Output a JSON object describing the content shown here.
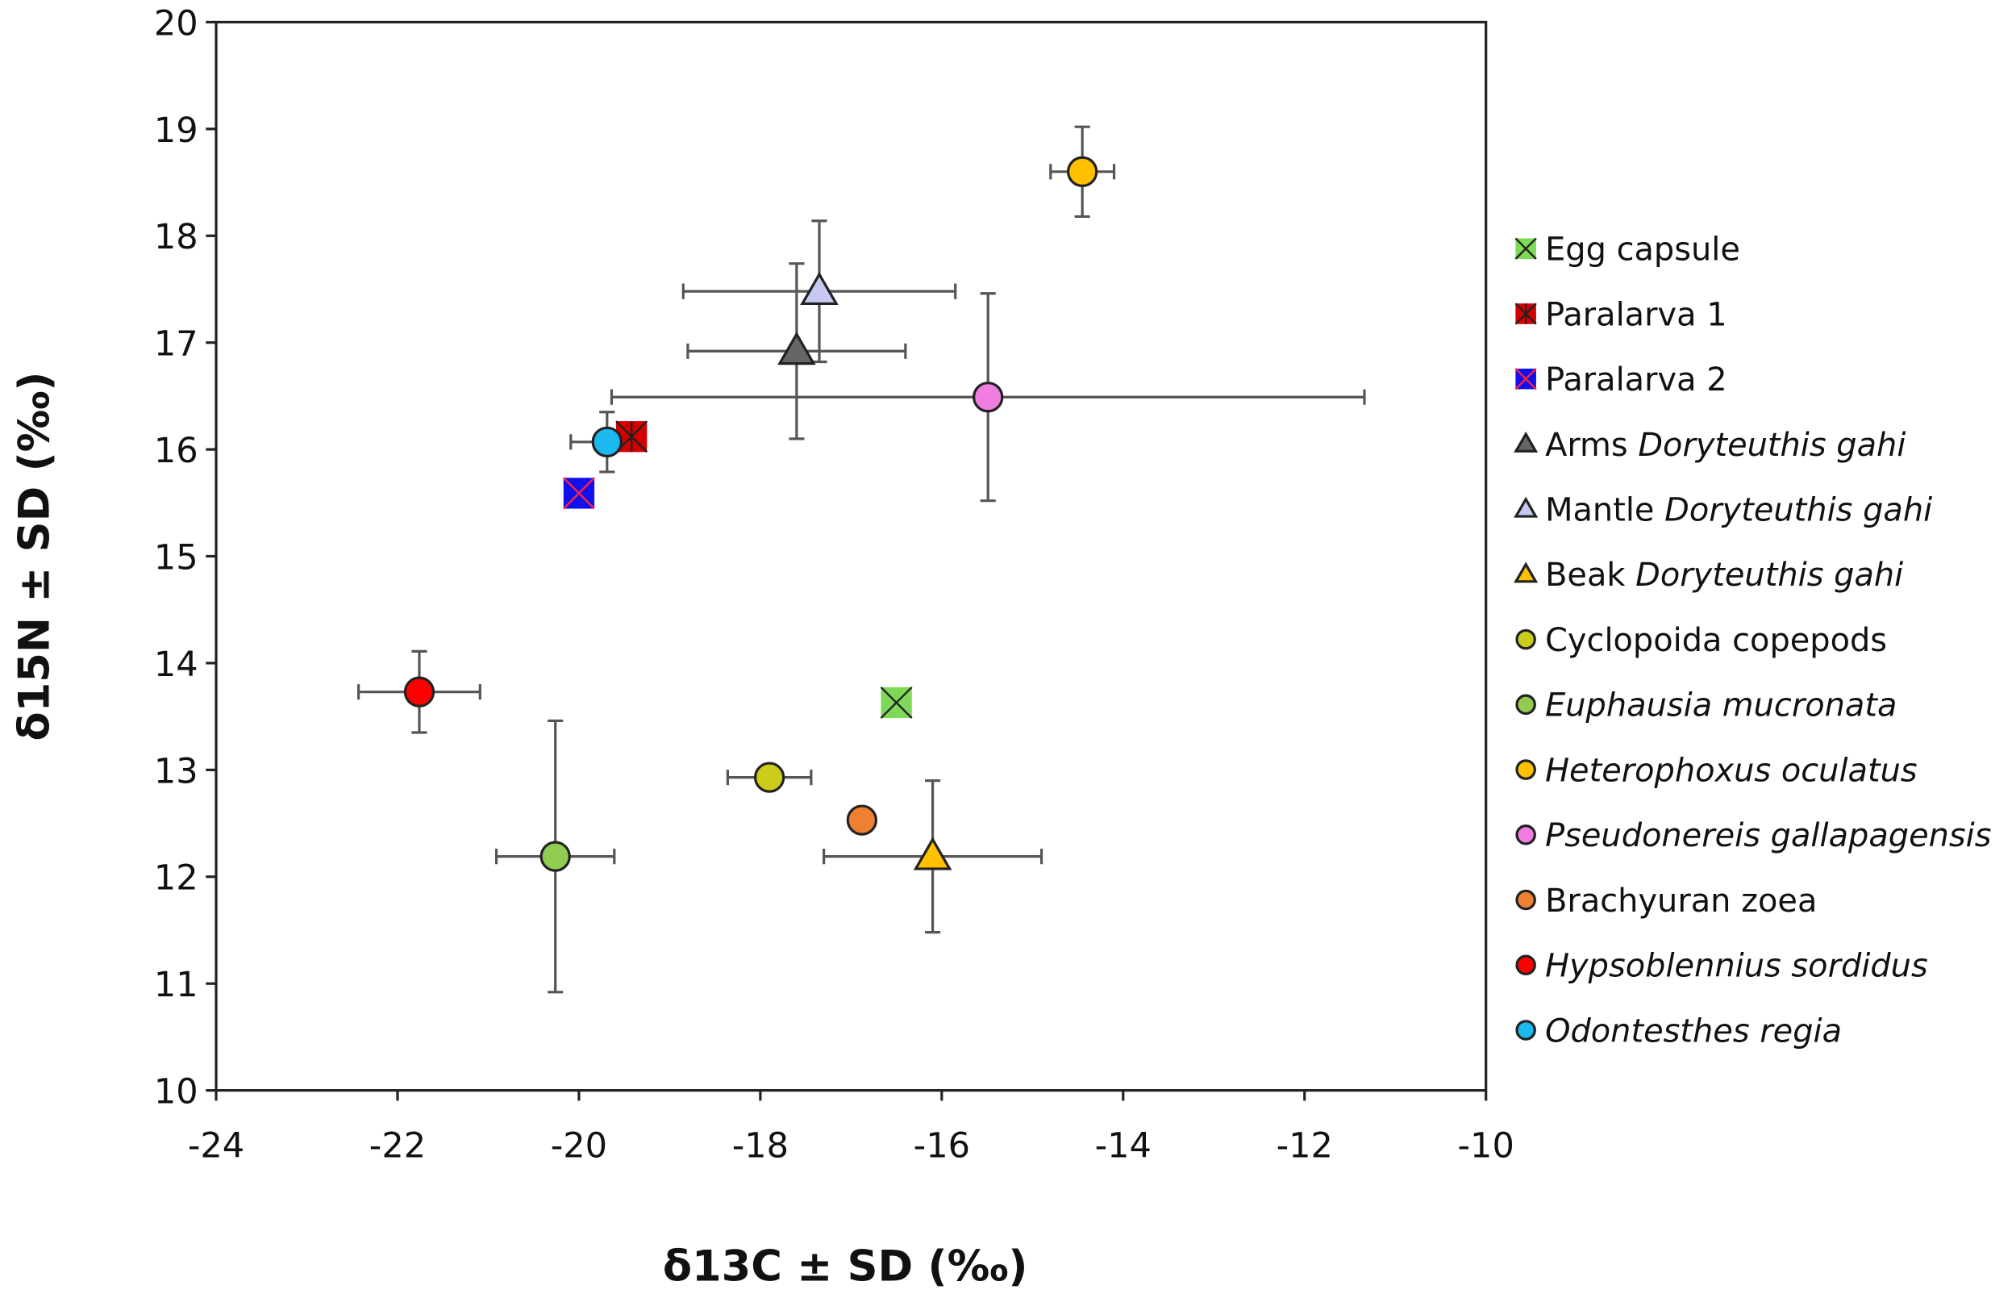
{
  "chart_data": {
    "type": "scatter",
    "title": "",
    "xlabel": "δ13C ± SD (‰)",
    "ylabel": "δ15N ± SD (‰)",
    "xlim": [
      -24,
      -10
    ],
    "ylim": [
      10,
      20
    ],
    "xticks": [
      -24,
      -22,
      -20,
      -18,
      -16,
      -14,
      -12,
      -10
    ],
    "yticks": [
      10,
      11,
      12,
      13,
      14,
      15,
      16,
      17,
      18,
      19,
      20
    ],
    "grid": false,
    "legend_position": "right",
    "series": [
      {
        "name": "Egg capsule",
        "name_plain": "Egg capsule",
        "name_italic": "",
        "marker": "square-x",
        "color": "#7ed957",
        "x": -16.5,
        "y": 13.63,
        "xsd": 0,
        "ysd": 0
      },
      {
        "name": "Paralarva 1",
        "name_plain": "Paralarva 1",
        "name_italic": "",
        "marker": "square-star",
        "color": "#d40000",
        "x": -19.42,
        "y": 16.12,
        "xsd": 0,
        "ysd": 0
      },
      {
        "name": "Paralarva 2",
        "name_plain": "Paralarva 2",
        "name_italic": "",
        "marker": "square-x",
        "color": "#1010ee",
        "x": -20.0,
        "y": 15.59,
        "xsd": 0,
        "ysd": 0
      },
      {
        "name": "Arms Doryteuthis gahi",
        "name_plain": "Arms ",
        "name_italic": "Doryteuthis gahi",
        "marker": "triangle",
        "color": "#666666",
        "x": -17.6,
        "y": 16.92,
        "xsd": 1.2,
        "ysd": 0.82
      },
      {
        "name": "Mantle Doryteuthis gahi",
        "name_plain": "Mantle ",
        "name_italic": "Doryteuthis gahi",
        "marker": "triangle",
        "color": "#c8c8f4",
        "x": -17.35,
        "y": 17.48,
        "xsd": 1.5,
        "ysd": 0.66
      },
      {
        "name": "Beak Doryteuthis gahi",
        "name_plain": "Beak ",
        "name_italic": "Doryteuthis gahi",
        "marker": "triangle",
        "color": "#ffc000",
        "x": -16.1,
        "y": 12.19,
        "xsd": 1.2,
        "ysd": 0.71
      },
      {
        "name": "Cyclopoida copepods",
        "name_plain": "Cyclopoida copepods",
        "name_italic": "",
        "marker": "circle",
        "color": "#cccc1a",
        "x": -17.9,
        "y": 12.93,
        "xsd": 0.46,
        "ysd": 0
      },
      {
        "name": "Euphausia mucronata",
        "name_plain": "",
        "name_italic": "Euphausia mucronata",
        "marker": "circle",
        "color": "#8fcc4f",
        "x": -20.26,
        "y": 12.19,
        "xsd": 0.65,
        "ysd": 1.27
      },
      {
        "name": "Heterophoxus oculatus",
        "name_plain": "",
        "name_italic": "Heterophoxus oculatus",
        "marker": "circle",
        "color": "#ffc000",
        "x": -14.45,
        "y": 18.6,
        "xsd": 0.35,
        "ysd": 0.42
      },
      {
        "name": "Pseudonereis gallapagensis",
        "name_plain": "",
        "name_italic": "Pseudonereis gallapagensis",
        "marker": "circle",
        "color": "#f07ee0",
        "x": -15.49,
        "y": 16.49,
        "xsd": 4.15,
        "ysd": 0.97
      },
      {
        "name": "Brachyuran zoea",
        "name_plain": "Brachyuran zoea",
        "name_italic": "",
        "marker": "circle",
        "color": "#ee8032",
        "x": -16.88,
        "y": 12.53,
        "xsd": 0,
        "ysd": 0
      },
      {
        "name": "Hypsoblennius sordidus",
        "name_plain": "",
        "name_italic": "Hypsoblennius sordidus",
        "marker": "circle",
        "color": "#ff0000",
        "x": -21.76,
        "y": 13.73,
        "xsd": 0.67,
        "ysd": 0.38
      },
      {
        "name": "Odontesthes regia",
        "name_plain": "",
        "name_italic": "Odontesthes regia",
        "marker": "circle",
        "color": "#1cb8f0",
        "x": -19.69,
        "y": 16.07,
        "xsd": 0.4,
        "ysd": 0.28
      }
    ]
  }
}
